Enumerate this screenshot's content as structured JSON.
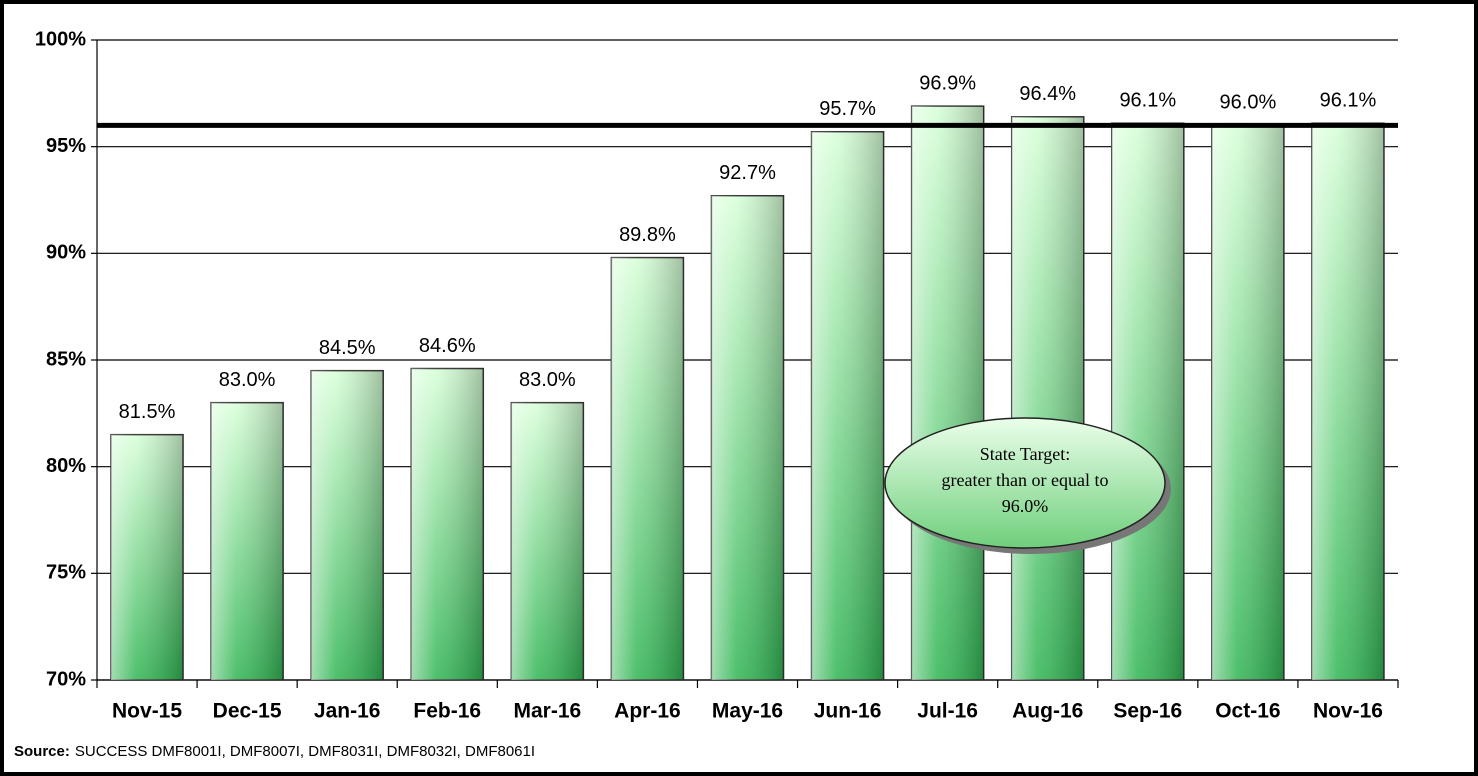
{
  "chart_data": {
    "type": "bar",
    "categories": [
      "Nov-15",
      "Dec-15",
      "Jan-16",
      "Feb-16",
      "Mar-16",
      "Apr-16",
      "May-16",
      "Jun-16",
      "Jul-16",
      "Aug-16",
      "Sep-16",
      "Oct-16",
      "Nov-16"
    ],
    "values": [
      81.5,
      83.0,
      84.5,
      84.6,
      83.0,
      89.8,
      92.7,
      95.7,
      96.9,
      96.4,
      96.1,
      96.0,
      96.1
    ],
    "value_labels": [
      "81.5%",
      "83.0%",
      "84.5%",
      "84.6%",
      "83.0%",
      "89.8%",
      "92.7%",
      "95.7%",
      "96.9%",
      "96.4%",
      "96.1%",
      "96.0%",
      "96.1%"
    ],
    "color": "#2fb552",
    "ylim": [
      70,
      100
    ],
    "yticks": [
      {
        "value": 70,
        "label": "70%"
      },
      {
        "value": 75,
        "label": "75%"
      },
      {
        "value": 80,
        "label": "80%"
      },
      {
        "value": 85,
        "label": "85%"
      },
      {
        "value": 90,
        "label": "90%"
      },
      {
        "value": 95,
        "label": "95%"
      },
      {
        "value": 100,
        "label": "100%"
      }
    ],
    "grid": true,
    "target_line": 96.0,
    "annotation": [
      "State Target:",
      "greater than or equal to",
      "96.0%"
    ],
    "source_label": "Source:",
    "source_text": "SUCCESS DMF8001I, DMF8007I, DMF8031I, DMF8032I, DMF8061I"
  }
}
